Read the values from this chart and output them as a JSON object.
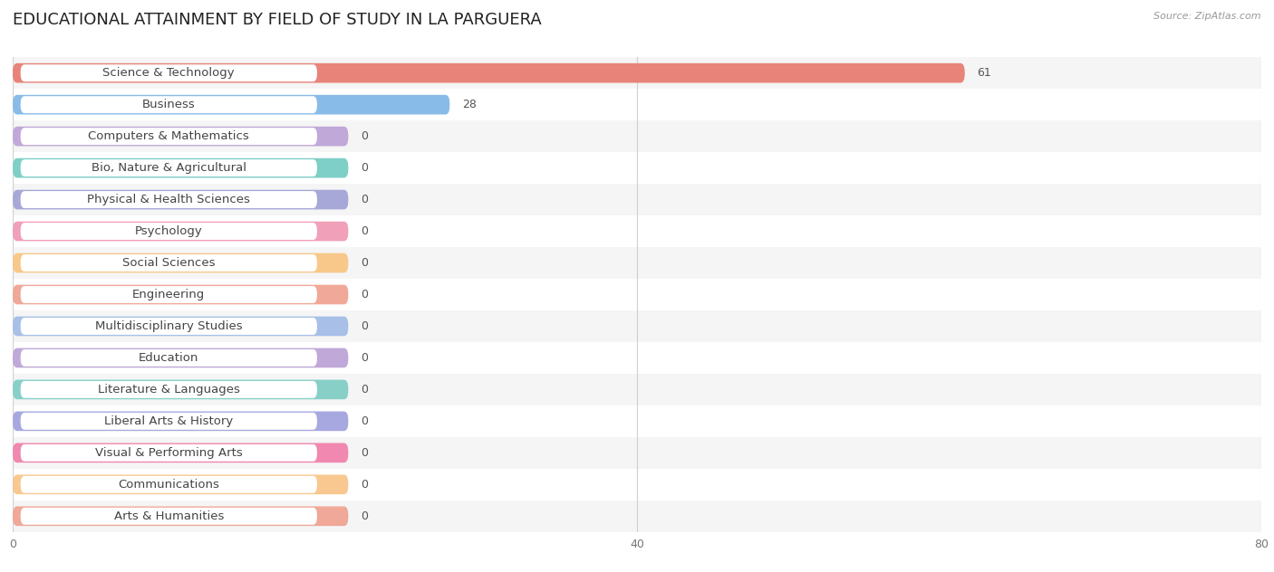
{
  "title": "EDUCATIONAL ATTAINMENT BY FIELD OF STUDY IN LA PARGUERA",
  "source": "Source: ZipAtlas.com",
  "categories": [
    "Science & Technology",
    "Business",
    "Computers & Mathematics",
    "Bio, Nature & Agricultural",
    "Physical & Health Sciences",
    "Psychology",
    "Social Sciences",
    "Engineering",
    "Multidisciplinary Studies",
    "Education",
    "Literature & Languages",
    "Liberal Arts & History",
    "Visual & Performing Arts",
    "Communications",
    "Arts & Humanities"
  ],
  "values": [
    61,
    28,
    0,
    0,
    0,
    0,
    0,
    0,
    0,
    0,
    0,
    0,
    0,
    0,
    0
  ],
  "bar_colors": [
    "#E8837A",
    "#88BBE8",
    "#C0A8D8",
    "#7ECFC8",
    "#A8A8D8",
    "#F0A0B8",
    "#F8C88A",
    "#F0A898",
    "#A8C0E8",
    "#C0A8D8",
    "#88CFC8",
    "#A8A8E0",
    "#F088B0",
    "#F8C890",
    "#F0A898"
  ],
  "xlim": [
    0,
    80
  ],
  "xticks": [
    0,
    40,
    80
  ],
  "background_color": "#ffffff",
  "row_bg_odd": "#f5f5f5",
  "row_bg_even": "#ffffff",
  "bar_height": 0.62,
  "title_fontsize": 13,
  "label_fontsize": 9.5,
  "value_fontsize": 9
}
